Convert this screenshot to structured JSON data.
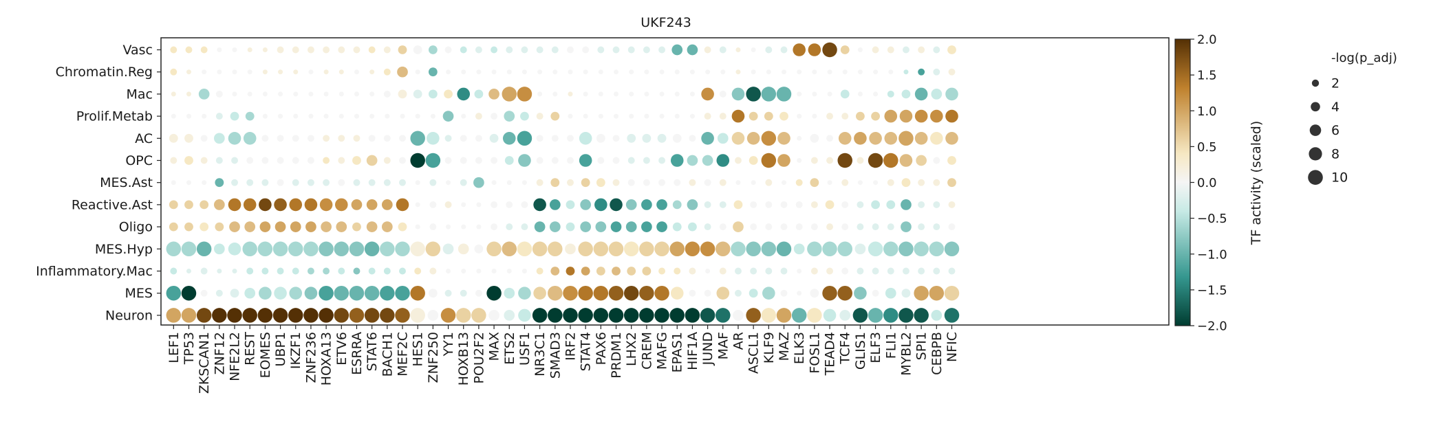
{
  "chart_data": {
    "type": "dotplot",
    "title": "UKF243",
    "xlabel": "",
    "ylabel": "",
    "rows": [
      "Vasc",
      "Chromatin.Reg",
      "Mac",
      "Prolif.Metab",
      "AC",
      "OPC",
      "MES.Ast",
      "Reactive.Ast",
      "Oligo",
      "MES.Hyp",
      "Inflammatory.Mac",
      "MES",
      "Neuron"
    ],
    "columns": [
      "LEF1",
      "TP53",
      "ZKSCAN1",
      "ZNF12",
      "NFE2L2",
      "REST",
      "EOMES",
      "UBP1",
      "IKZF1",
      "ZNF236",
      "HOXA13",
      "ETV6",
      "ESRRA",
      "STAT6",
      "BACH1",
      "MEF2C",
      "HES1",
      "ZNF250",
      "YY1",
      "HOXB13",
      "POU2F2",
      "MAX",
      "ETS2",
      "USF1",
      "NR3C1",
      "SMAD3",
      "IRF2",
      "STAT4",
      "PAX6",
      "PRDM1",
      "LHX2",
      "CREM",
      "MAFG",
      "EPAS1",
      "HIF1A",
      "JUND",
      "MAF",
      "AR",
      "ASCL1",
      "KLF9",
      "MAZ",
      "ELK3",
      "FOSL1",
      "TEAD4",
      "TCF4",
      "GLIS1",
      "ELF3",
      "FLI1",
      "MYBL2",
      "SPI1",
      "CEBPB",
      "NFIC"
    ],
    "activity_rows": [
      "2 2 2 0 0 1 1 1 1 1 1 1 1 2 1 3 0 -3 0 -2 -1 -2 -1 -1 -1 -1 0 0 -1 -1 -1 -1 -1 -5 -5 1 -1 1 0 -1 -1 7 7 9 3 0 1 1 -1 1 -1 2",
      "2 1 0 0 0 0 1 1 1 0 1 1 0 1 2 4 0 -5 0 0 0 0 0 0 0 0 0 0 0 0 0 0 0 0 0 0 0 1 0 0 0 0 0 0 0 0 0 0 -2 -6 -1 1",
      "1 1 -3 0 0 0 0 0 0 0 0 0 0 0 0 1 -1 -2 2 -7 -2 4 5 6 0 0 1 0 0 0 0 0 0 0 0 6 0 -4 -9 -5 -5 0 0 0 -2 0 0 -2 -2 -5 -2 -3",
      "0 0 0 -1 -2 -3 0 0 0 0 0 0 0 0 0 0 0 0 -4 0 1 0 -3 -2 1 3 0 0 0 0 0 0 0 0 0 1 1 7 3 3 2 0 0 1 1 3 3 5 5 6 6 7",
      "1 1 0 -2 -3 -3 0 0 0 0 1 1 1 0 0 0 -5 -2 -1 0 0 -1 -5 -6 0 0 0 -2 0 0 -1 -1 -1 0 0 -5 -2 3 4 6 4 0 0 0 4 5 4 4 5 4 2 4",
      "1 2 1 -1 -1 0 0 0 0 0 2 1 2 3 1 0 -10 -6 0 0 0 0 -2 -4 0 0 0 -6 0 0 -1 -1 -1 -6 -3 -3 -7 1 2 7 5 0 1 1 9 1 9 7 4 3 0 2",
      "0 0 0 -5 -1 -1 -1 0 -1 -1 -1 0 -1 -1 -1 -1 0 -1 0 -1 -4 0 0 0 1 3 1 3 2 1 0 0 0 0 1 0 1 0 0 1 0 2 3 0 1 0 0 1 2 1 1 3",
      "3 3 3 4 7 7 9 8 7 7 6 6 5 5 5 7 0 0 1 0 0 0 0 0 -9 -6 -2 -4 -7 -9 -4 -6 -6 -3 -4 -1 -1 2 0 0 0 0 1 2 0 -1 -2 -2 -5 -1 -1 1",
      "3 3 2 3 4 4 5 5 5 5 4 4 3 4 4 2 0 0 0 0 0 0 -1 -1 -5 -4 -2 -4 -4 -6 -5 -6 -6 -2 -2 -1 0 3 0 0 0 0 0 1 0 -1 -1 -1 -4 -1 -1 0",
      "-3 -3 -5 -2 -2 -3 -3 -3 -3 -3 -4 -4 -4 -5 -3 -3 1 3 -1 1 0 3 4 2 3 3 1 3 3 3 2 3 3 5 6 6 4 -3 -4 -4 -5 -2 -3 -3 -3 -1 -2 -3 -4 -3 -3 -4",
      "-2 -1 -1 -1 -1 -2 -2 -2 -2 -3 -3 -2 -4 -2 -2 -2 2 1 0 0 0 0 0 0 2 4 7 5 3 4 3 3 2 2 1 0 1 -1 -1 -1 -1 0 1 1 0 -1 -1 -1 -1 -1 -1 -1",
      "-6 -10 0 -1 -1 -2 -3 -2 -3 -4 -6 -5 -5 -5 -6 -6 7 0 -1 -1 0 -10 -2 -3 3 4 6 7 7 8 9 8 7 2 0 0 3 -1 -2 -3 0 0 0 8 8 -4 0 -2 -1 5 5 3",
      "5 5 9 10 10 10 10 10 10 10 10 9 8 9 9 8 1 0 6 3 3 0 -1 -2 -20 -20 -10 -11 -11 -12 -11 -10 -11 -11 -11 -9 -8 0 8 2 5 -5 2 -2 -1 -9 -5 -7 -9 -9 -2 -8"
    ],
    "activity_unit": "activity value = number x 0.2",
    "size_rows": [
      "3 3 3 2 2 2 2 3 3 3 3 3 3 3 3 4 4 4 3 3 3 3 3 3 3 3 3 3 3 3 3 3 3 5 5 3 3 2 2 3 3 6 6 7 4 2 3 3 3 3 3 4",
      "3 2 2 2 2 2 2 2 2 2 2 2 2 2 3 5 2 4 2 2 2 2 2 2 2 2 2 2 2 2 2 2 2 2 2 2 2 2 2 2 2 2 2 2 2 2 2 2 2 3 3 3",
      "2 2 5 3 2 2 2 2 2 2 2 2 2 2 3 4 4 4 4 6 4 5 7 7 2 2 2 2 2 2 2 2 2 2 2 6 3 6 7 7 7 2 2 2 4 2 2 3 4 6 5 6",
      "2 2 2 3 4 4 2 2 2 2 2 2 2 2 2 2 2 2 5 2 3 3 5 4 3 4 2 2 2 2 2 2 2 2 2 3 3 6 4 4 4 2 2 3 3 4 4 6 6 6 6 6",
      "4 4 3 5 6 6 3 3 3 3 3 3 3 3 3 3 7 6 3 3 3 4 6 7 3 3 3 6 4 3 4 4 4 4 3 6 5 6 6 7 6 2 4 3 6 6 6 6 7 6 6 6",
      "3 4 3 3 3 3 3 3 3 3 3 3 4 5 3 3 7 7 3 3 3 3 4 6 3 3 3 6 3 3 3 3 3 6 5 5 6 3 4 7 6 2 3 3 7 3 7 7 6 5 3 4",
      "2 2 2 4 3 3 3 3 3 3 3 3 3 3 3 3 2 3 2 3 5 2 2 2 3 4 3 4 4 3 3 3 3 3 3 3 3 2 2 3 2 3 4 2 3 2 2 3 4 3 3 4",
      "4 4 4 5 6 6 6 6 6 6 6 6 5 5 5 6 2 3 3 2 2 3 3 3 6 5 4 5 6 6 5 5 5 4 5 3 3 4 3 3 3 3 3 4 3 3 4 4 5 3 3 3",
      "4 4 4 4 5 5 5 5 5 5 5 5 4 5 5 4 2 3 2 2 2 3 3 3 5 5 4 5 5 5 5 5 5 4 4 3 3 5 3 3 3 3 3 3 3 3 3 3 5 3 3 3",
      "7 7 7 5 6 7 7 7 7 7 7 7 7 7 7 7 7 7 5 5 4 7 7 7 7 7 5 7 7 7 7 7 7 7 7 7 7 7 7 7 7 5 7 7 7 5 7 7 7 7 7 7",
      "3 2 3 2 2 3 3 3 3 3 3 3 3 3 3 3 3 3 2 2 2 2 2 2 3 4 4 4 4 4 4 4 3 3 3 2 3 3 3 3 3 2 3 3 3 3 3 3 3 3 3 3",
      "7 7 3 3 4 5 6 6 6 6 7 7 7 7 7 7 7 4 3 3 3 7 5 6 6 7 7 7 7 7 7 7 7 6 3 3 6 3 4 6 3 2 4 7 7 6 3 5 4 7 7 7",
      "7 7 7 7 7 7 7 7 7 7 7 7 7 7 7 7 7 5 7 7 7 5 5 6 7 7 7 7 7 7 7 7 7 7 7 7 7 5 7 7 7 7 7 6 5 7 7 7 7 7 5 7"
    ],
    "size_unit": "-log(p_adj) value = number x 1.5",
    "colorbar": {
      "label": "TF activity (scaled)",
      "min": -2.0,
      "max": 2.0,
      "ticks": [
        "2.0",
        "1.5",
        "1.0",
        "0.5",
        "0.0",
        "−0.5",
        "−1.0",
        "−1.5",
        "−2.0"
      ],
      "colors": [
        "#003c30",
        "#35978f",
        "#c7eae5",
        "#f5f5f5",
        "#f6e8c3",
        "#bf812d",
        "#543005"
      ]
    },
    "size_legend": {
      "title": "-log(p_adj)",
      "labels": [
        "2",
        "4",
        "6",
        "8",
        "10"
      ],
      "values": [
        2,
        4,
        6,
        8,
        10
      ]
    }
  }
}
